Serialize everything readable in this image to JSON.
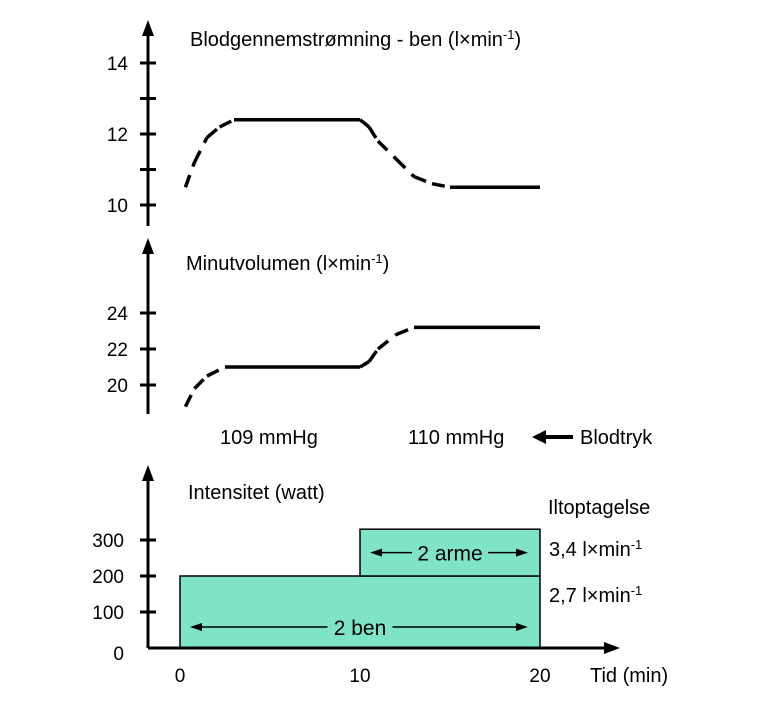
{
  "chart_data": [
    {
      "type": "line",
      "title": "Blodgennemstrømning - ben (l×min",
      "title_sup": "-1",
      "title_end": ")",
      "yticks": [
        "10",
        "12",
        "14"
      ],
      "ylim": [
        10,
        14
      ],
      "x": [
        0.3,
        0.8,
        1.5,
        2.2,
        3.0,
        10.0,
        10.5,
        11.0,
        12.0,
        13.0,
        14.0,
        15.0,
        20.0
      ],
      "values": [
        10.5,
        11.2,
        11.9,
        12.2,
        12.4,
        12.4,
        12.2,
        11.8,
        11.3,
        10.8,
        10.6,
        10.5,
        10.5
      ],
      "dashed_ranges": [
        [
          0.3,
          3.0
        ],
        [
          10.0,
          15.0
        ]
      ]
    },
    {
      "type": "line",
      "title": "Minutvolumen (l×min",
      "title_sup": "-1",
      "title_end": ")",
      "yticks": [
        "20",
        "22",
        "24"
      ],
      "ylim": [
        18.5,
        25
      ],
      "x": [
        0.3,
        0.8,
        1.5,
        2.5,
        10.0,
        10.5,
        11.0,
        12.0,
        13.0,
        20.0
      ],
      "values": [
        18.8,
        19.8,
        20.5,
        21.0,
        21.0,
        21.3,
        22.0,
        22.8,
        23.2,
        23.2
      ],
      "dashed_ranges": [
        [
          0.3,
          2.5
        ],
        [
          10.0,
          13.0
        ]
      ],
      "annotations": {
        "bp_left": "109 mmHg",
        "bp_right": "110 mmHg",
        "bp_label": "Blodtryk"
      }
    },
    {
      "type": "bar",
      "title": "Intensitet (watt)",
      "xlabel": "Tid (min)",
      "xticks": [
        "0",
        "10",
        "20"
      ],
      "yticks": [
        "0",
        "100",
        "200",
        "300"
      ],
      "xlim": [
        0,
        20
      ],
      "ylim": [
        0,
        300
      ],
      "blocks": [
        {
          "label": "2 ben",
          "x_start": 0,
          "x_end": 20,
          "y_bottom": 0,
          "y_top": 200
        },
        {
          "label": "2 arme",
          "x_start": 10,
          "x_end": 20,
          "y_bottom": 200,
          "y_top": 330
        }
      ],
      "fill_color": "#7fe3c8",
      "side_heading": "Iltoptagelse",
      "side_values": [
        {
          "text": "3,4 l×min",
          "sup": "-1"
        },
        {
          "text": "2,7 l×min",
          "sup": "-1"
        }
      ]
    }
  ]
}
